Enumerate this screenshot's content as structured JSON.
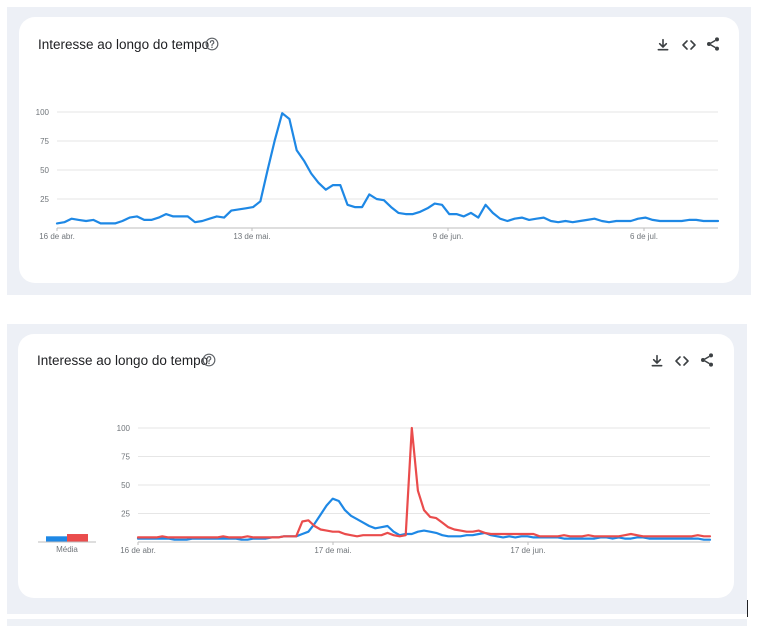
{
  "cards": [
    {
      "title": "Interesse ao longo do tempo",
      "icons": [
        "help-icon",
        "download-icon",
        "embed-code-icon",
        "share-icon"
      ],
      "chart_data": {
        "type": "line",
        "y_ticks": [
          25,
          50,
          75,
          100
        ],
        "x_tick_labels": [
          "16 de abr.",
          "13 de mai.",
          "9 de jun.",
          "6 de jul."
        ],
        "ylim": [
          0,
          100
        ],
        "grid": true,
        "series": [
          {
            "color": "#1e88e5",
            "values": [
              4,
              5,
              8,
              7,
              6,
              7,
              4,
              4,
              4,
              6,
              9,
              10,
              7,
              7,
              9,
              12,
              10,
              10,
              10,
              5,
              6,
              8,
              10,
              9,
              15,
              16,
              17,
              18,
              23,
              50,
              76,
              99,
              94,
              67,
              58,
              47,
              39,
              33,
              37,
              37,
              20,
              18,
              18,
              29,
              25,
              24,
              18,
              13,
              12,
              12,
              14,
              17,
              21,
              20,
              12,
              12,
              10,
              13,
              9,
              20,
              13,
              8,
              6,
              8,
              9,
              7,
              8,
              9,
              6,
              5,
              6,
              5,
              6,
              7,
              8,
              6,
              5,
              6,
              6,
              6,
              8,
              9,
              7,
              6,
              6,
              6,
              6,
              7,
              7,
              6,
              6,
              6
            ]
          }
        ]
      }
    },
    {
      "title": "Interesse ao longo do tempo",
      "icons": [
        "help-icon",
        "download-icon",
        "embed-code-icon",
        "share-icon"
      ],
      "average_label": "Média",
      "average_values": [
        5,
        7
      ],
      "chart_data": {
        "type": "line",
        "y_ticks": [
          25,
          50,
          75,
          100
        ],
        "x_tick_labels": [
          "16 de abr.",
          "17 de mai.",
          "17 de jun."
        ],
        "ylim": [
          0,
          100
        ],
        "grid": true,
        "series": [
          {
            "color": "#1e88e5",
            "values": [
              3,
              3,
              3,
              3,
              3,
              3,
              2,
              2,
              2,
              3,
              3,
              3,
              3,
              3,
              3,
              3,
              3,
              2,
              2,
              3,
              3,
              3,
              4,
              4,
              5,
              5,
              5,
              7,
              9,
              16,
              24,
              32,
              38,
              36,
              28,
              23,
              20,
              17,
              14,
              12,
              13,
              14,
              9,
              6,
              7,
              7,
              9,
              10,
              9,
              8,
              6,
              5,
              5,
              5,
              6,
              6,
              7,
              8,
              6,
              5,
              4,
              5,
              4,
              5,
              5,
              4,
              4,
              4,
              4,
              4,
              3,
              3,
              3,
              3,
              3,
              3,
              4,
              4,
              3,
              4,
              3,
              3,
              4,
              4,
              3,
              3,
              3,
              3,
              3,
              3,
              3,
              3,
              3,
              2,
              2
            ]
          },
          {
            "color": "#ea4c4c",
            "values": [
              4,
              4,
              4,
              4,
              5,
              4,
              4,
              4,
              4,
              4,
              4,
              4,
              4,
              4,
              5,
              4,
              4,
              4,
              5,
              4,
              4,
              4,
              4,
              4,
              5,
              5,
              5,
              18,
              19,
              14,
              11,
              10,
              9,
              9,
              7,
              6,
              5,
              6,
              6,
              6,
              6,
              8,
              6,
              5,
              6,
              100,
              45,
              28,
              22,
              21,
              17,
              13,
              11,
              10,
              9,
              9,
              10,
              8,
              7,
              7,
              7,
              7,
              7,
              7,
              7,
              7,
              5,
              5,
              5,
              5,
              6,
              5,
              5,
              5,
              6,
              5,
              5,
              5,
              5,
              5,
              6,
              7,
              6,
              5,
              5,
              5,
              5,
              5,
              5,
              5,
              5,
              5,
              6,
              5,
              5
            ]
          }
        ]
      }
    }
  ]
}
